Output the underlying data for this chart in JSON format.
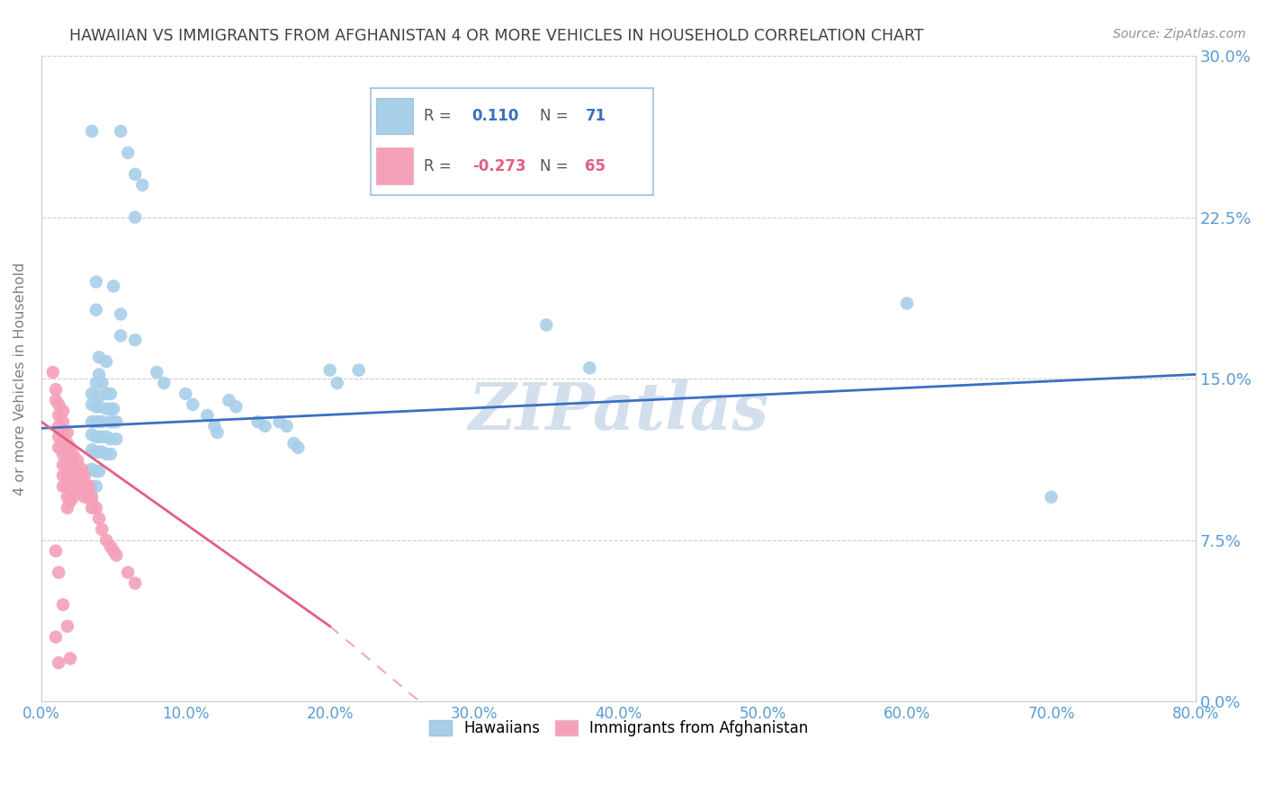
{
  "title": "HAWAIIAN VS IMMIGRANTS FROM AFGHANISTAN 4 OR MORE VEHICLES IN HOUSEHOLD CORRELATION CHART",
  "source": "Source: ZipAtlas.com",
  "ylabel": "4 or more Vehicles in Household",
  "xlim": [
    0.0,
    0.8
  ],
  "ylim": [
    0.0,
    0.3
  ],
  "hawaiian_color": "#a8cfe8",
  "afghan_color": "#f4a0b8",
  "trendline_hawaiian_color": "#3a6fc4",
  "trendline_afghan_color": "#e06080",
  "watermark": "ZIPatlas",
  "watermark_color": "#c8d8e8",
  "bg_color": "#ffffff",
  "grid_color": "#cccccc",
  "tick_color": "#5b9bd5",
  "title_color": "#404040",
  "ylabel_color": "#808080",
  "legend_border_color": "#a0c0e0",
  "legend_R_color_haw": "#3a6fc4",
  "legend_R_color_afg": "#e06080",
  "legend_N_color_haw": "#3a6fc4",
  "legend_N_color_afg": "#e06080",
  "hawaiian_trendline_start_x": 0.0,
  "hawaiian_trendline_end_x": 0.8,
  "hawaiian_trendline_start_y": 0.127,
  "hawaiian_trendline_end_y": 0.152,
  "afghan_trendline_start_x": 0.0,
  "afghan_trendline_end_x": 0.2,
  "afghan_trendline_start_y": 0.13,
  "afghan_trendline_end_y": 0.035,
  "afghan_trendline_dash_end_x": 0.28,
  "afghan_trendline_dash_end_y": -0.01,
  "hawaiian_points": [
    [
      0.035,
      0.265
    ],
    [
      0.055,
      0.265
    ],
    [
      0.06,
      0.255
    ],
    [
      0.065,
      0.245
    ],
    [
      0.07,
      0.24
    ],
    [
      0.038,
      0.195
    ],
    [
      0.05,
      0.193
    ],
    [
      0.038,
      0.182
    ],
    [
      0.055,
      0.18
    ],
    [
      0.055,
      0.17
    ],
    [
      0.065,
      0.168
    ],
    [
      0.04,
      0.16
    ],
    [
      0.045,
      0.158
    ],
    [
      0.04,
      0.152
    ],
    [
      0.038,
      0.148
    ],
    [
      0.042,
      0.148
    ],
    [
      0.035,
      0.143
    ],
    [
      0.04,
      0.142
    ],
    [
      0.045,
      0.143
    ],
    [
      0.048,
      0.143
    ],
    [
      0.035,
      0.138
    ],
    [
      0.038,
      0.137
    ],
    [
      0.04,
      0.137
    ],
    [
      0.045,
      0.136
    ],
    [
      0.048,
      0.136
    ],
    [
      0.05,
      0.136
    ],
    [
      0.035,
      0.13
    ],
    [
      0.038,
      0.13
    ],
    [
      0.04,
      0.13
    ],
    [
      0.042,
      0.13
    ],
    [
      0.048,
      0.13
    ],
    [
      0.05,
      0.13
    ],
    [
      0.052,
      0.13
    ],
    [
      0.035,
      0.124
    ],
    [
      0.038,
      0.123
    ],
    [
      0.04,
      0.123
    ],
    [
      0.042,
      0.123
    ],
    [
      0.045,
      0.123
    ],
    [
      0.048,
      0.122
    ],
    [
      0.052,
      0.122
    ],
    [
      0.035,
      0.117
    ],
    [
      0.038,
      0.116
    ],
    [
      0.04,
      0.116
    ],
    [
      0.042,
      0.116
    ],
    [
      0.045,
      0.115
    ],
    [
      0.048,
      0.115
    ],
    [
      0.035,
      0.108
    ],
    [
      0.038,
      0.107
    ],
    [
      0.04,
      0.107
    ],
    [
      0.035,
      0.1
    ],
    [
      0.038,
      0.1
    ],
    [
      0.035,
      0.093
    ],
    [
      0.065,
      0.225
    ],
    [
      0.08,
      0.153
    ],
    [
      0.085,
      0.148
    ],
    [
      0.1,
      0.143
    ],
    [
      0.105,
      0.138
    ],
    [
      0.115,
      0.133
    ],
    [
      0.12,
      0.128
    ],
    [
      0.122,
      0.125
    ],
    [
      0.13,
      0.14
    ],
    [
      0.135,
      0.137
    ],
    [
      0.15,
      0.13
    ],
    [
      0.155,
      0.128
    ],
    [
      0.165,
      0.13
    ],
    [
      0.17,
      0.128
    ],
    [
      0.175,
      0.12
    ],
    [
      0.178,
      0.118
    ],
    [
      0.2,
      0.154
    ],
    [
      0.205,
      0.148
    ],
    [
      0.22,
      0.154
    ],
    [
      0.35,
      0.175
    ],
    [
      0.38,
      0.155
    ],
    [
      0.6,
      0.185
    ],
    [
      0.7,
      0.095
    ]
  ],
  "afghan_points": [
    [
      0.008,
      0.153
    ],
    [
      0.01,
      0.145
    ],
    [
      0.01,
      0.14
    ],
    [
      0.012,
      0.138
    ],
    [
      0.012,
      0.133
    ],
    [
      0.012,
      0.128
    ],
    [
      0.012,
      0.123
    ],
    [
      0.012,
      0.118
    ],
    [
      0.015,
      0.135
    ],
    [
      0.015,
      0.13
    ],
    [
      0.015,
      0.125
    ],
    [
      0.015,
      0.12
    ],
    [
      0.015,
      0.115
    ],
    [
      0.015,
      0.11
    ],
    [
      0.015,
      0.105
    ],
    [
      0.015,
      0.1
    ],
    [
      0.018,
      0.125
    ],
    [
      0.018,
      0.12
    ],
    [
      0.018,
      0.115
    ],
    [
      0.018,
      0.11
    ],
    [
      0.018,
      0.105
    ],
    [
      0.018,
      0.1
    ],
    [
      0.018,
      0.095
    ],
    [
      0.018,
      0.09
    ],
    [
      0.02,
      0.118
    ],
    [
      0.02,
      0.113
    ],
    [
      0.02,
      0.108
    ],
    [
      0.02,
      0.103
    ],
    [
      0.02,
      0.098
    ],
    [
      0.02,
      0.093
    ],
    [
      0.022,
      0.115
    ],
    [
      0.022,
      0.11
    ],
    [
      0.022,
      0.105
    ],
    [
      0.022,
      0.1
    ],
    [
      0.022,
      0.095
    ],
    [
      0.025,
      0.112
    ],
    [
      0.025,
      0.107
    ],
    [
      0.025,
      0.102
    ],
    [
      0.028,
      0.108
    ],
    [
      0.028,
      0.103
    ],
    [
      0.028,
      0.098
    ],
    [
      0.03,
      0.105
    ],
    [
      0.03,
      0.1
    ],
    [
      0.03,
      0.095
    ],
    [
      0.033,
      0.1
    ],
    [
      0.033,
      0.095
    ],
    [
      0.035,
      0.095
    ],
    [
      0.035,
      0.09
    ],
    [
      0.038,
      0.09
    ],
    [
      0.04,
      0.085
    ],
    [
      0.042,
      0.08
    ],
    [
      0.045,
      0.075
    ],
    [
      0.048,
      0.072
    ],
    [
      0.05,
      0.07
    ],
    [
      0.052,
      0.068
    ],
    [
      0.06,
      0.06
    ],
    [
      0.065,
      0.055
    ],
    [
      0.01,
      0.07
    ],
    [
      0.012,
      0.06
    ],
    [
      0.015,
      0.045
    ],
    [
      0.018,
      0.035
    ],
    [
      0.02,
      0.02
    ],
    [
      0.01,
      0.03
    ],
    [
      0.012,
      0.018
    ]
  ]
}
